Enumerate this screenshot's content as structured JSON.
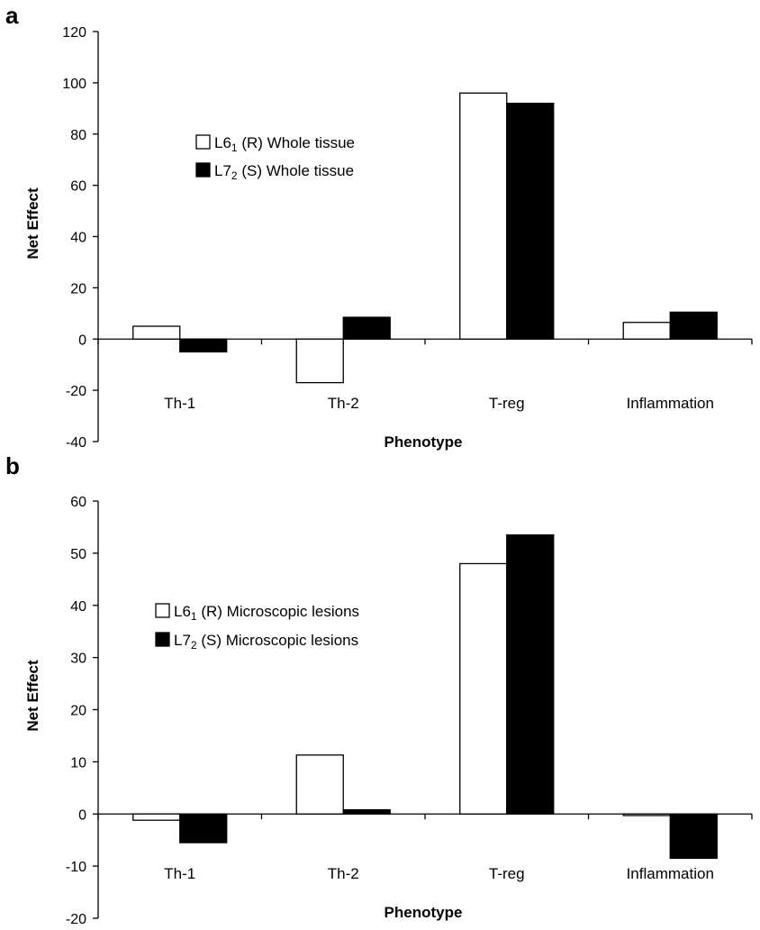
{
  "chart_data": [
    {
      "panel": "a",
      "type": "bar",
      "categories": [
        "Th-1",
        "Th-2",
        "T-reg",
        "Inflammation"
      ],
      "series": [
        {
          "name": "L6",
          "subscript": "1",
          "suffix": " (R) Whole tissue",
          "fill": "#ffffff",
          "values": [
            5,
            -17,
            96,
            6.5
          ]
        },
        {
          "name": "L7",
          "subscript": "2",
          "suffix": " (S) Whole tissue",
          "fill": "#000000",
          "values": [
            -5,
            8.5,
            92,
            10.5
          ]
        }
      ],
      "ylim": [
        -40,
        120
      ],
      "yticks": [
        -40,
        -20,
        0,
        20,
        40,
        60,
        80,
        100,
        120
      ],
      "ylabel": "Net Effect",
      "xlabel": "Phenotype",
      "legend": "upper-left"
    },
    {
      "panel": "b",
      "type": "bar",
      "categories": [
        "Th-1",
        "Th-2",
        "T-reg",
        "Inflammation"
      ],
      "series": [
        {
          "name": "L6",
          "subscript": "1",
          "suffix": " (R) Microscopic lesions",
          "fill": "#ffffff",
          "values": [
            -1.2,
            11.3,
            48,
            -0.3
          ]
        },
        {
          "name": "L7",
          "subscript": "2",
          "suffix": " (S) Microscopic lesions",
          "fill": "#000000",
          "values": [
            -5.5,
            0.8,
            53.5,
            -8.5
          ]
        }
      ],
      "ylim": [
        -20,
        60
      ],
      "yticks": [
        -20,
        -10,
        0,
        10,
        20,
        30,
        40,
        50,
        60
      ],
      "ylabel": "Net Effect",
      "xlabel": "Phenotype",
      "legend": "middle-left"
    }
  ]
}
